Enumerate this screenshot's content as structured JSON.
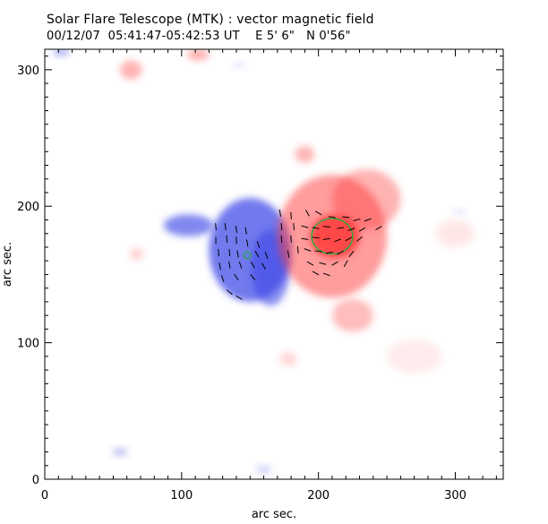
{
  "chart_data": {
    "type": "heatmap",
    "title": "Solar Flare Telescope (MTK) : vector magnetic field",
    "subtitle": {
      "date": "00/12/07",
      "time_range": "05:41:47-05:42:53 UT",
      "position_e": "E 5' 6\"",
      "position_n": "N 0'56\""
    },
    "xlabel": "arc sec.",
    "ylabel": "arc sec.",
    "xlim": [
      0,
      335
    ],
    "ylim": [
      0,
      315
    ],
    "xticks": [
      0,
      100,
      200,
      300
    ],
    "yticks": [
      0,
      100,
      200,
      300
    ],
    "grid": false,
    "colors": {
      "positive_polarity": "#ff3b3b",
      "negative_polarity": "#3a46e6",
      "contour": "#1fae3a",
      "arrows": "#000000"
    },
    "regions": [
      {
        "polarity": "negative",
        "cx": 150,
        "cy": 168,
        "rx": 30,
        "ry": 38,
        "strength": 0.85
      },
      {
        "polarity": "negative",
        "cx": 105,
        "cy": 186,
        "rx": 18,
        "ry": 8,
        "strength": 0.75
      },
      {
        "polarity": "negative",
        "cx": 165,
        "cy": 155,
        "rx": 14,
        "ry": 28,
        "strength": 0.7
      },
      {
        "polarity": "positive",
        "cx": 210,
        "cy": 178,
        "rx": 40,
        "ry": 45,
        "strength": 0.6
      },
      {
        "polarity": "positive",
        "cx": 212,
        "cy": 178,
        "rx": 18,
        "ry": 16,
        "strength": 1.0
      },
      {
        "polarity": "positive",
        "cx": 235,
        "cy": 205,
        "rx": 25,
        "ry": 22,
        "strength": 0.45
      },
      {
        "polarity": "positive",
        "cx": 225,
        "cy": 120,
        "rx": 15,
        "ry": 12,
        "strength": 0.4
      },
      {
        "polarity": "positive",
        "cx": 63,
        "cy": 300,
        "rx": 8,
        "ry": 7,
        "strength": 0.45
      },
      {
        "polarity": "positive",
        "cx": 112,
        "cy": 311,
        "rx": 8,
        "ry": 4,
        "strength": 0.5
      },
      {
        "polarity": "positive",
        "cx": 190,
        "cy": 238,
        "rx": 7,
        "ry": 6,
        "strength": 0.45
      },
      {
        "polarity": "positive",
        "cx": 178,
        "cy": 88,
        "rx": 6,
        "ry": 5,
        "strength": 0.25
      },
      {
        "polarity": "positive",
        "cx": 67,
        "cy": 165,
        "rx": 5,
        "ry": 4,
        "strength": 0.3
      },
      {
        "polarity": "positive",
        "cx": 300,
        "cy": 180,
        "rx": 14,
        "ry": 10,
        "strength": 0.15
      },
      {
        "polarity": "positive",
        "cx": 270,
        "cy": 90,
        "rx": 20,
        "ry": 12,
        "strength": 0.12
      },
      {
        "polarity": "negative",
        "cx": 12,
        "cy": 313,
        "rx": 6,
        "ry": 3,
        "strength": 0.5
      },
      {
        "polarity": "negative",
        "cx": 55,
        "cy": 20,
        "rx": 5,
        "ry": 3,
        "strength": 0.4
      },
      {
        "polarity": "negative",
        "cx": 160,
        "cy": 7,
        "rx": 5,
        "ry": 3,
        "strength": 0.3
      },
      {
        "polarity": "negative",
        "cx": 142,
        "cy": 303,
        "rx": 4,
        "ry": 2,
        "strength": 0.2
      },
      {
        "polarity": "negative",
        "cx": 303,
        "cy": 196,
        "rx": 4,
        "ry": 2,
        "strength": 0.2
      }
    ],
    "contours": [
      {
        "cx": 210,
        "cy": 178,
        "rx": 15,
        "ry": 13
      },
      {
        "cx": 148,
        "cy": 164,
        "rx": 2.5,
        "ry": 2.5
      }
    ],
    "vectors": [
      {
        "x": 125,
        "y": 185,
        "angle": 95
      },
      {
        "x": 132,
        "y": 185,
        "angle": 95
      },
      {
        "x": 140,
        "y": 183,
        "angle": 100
      },
      {
        "x": 147,
        "y": 182,
        "angle": 100
      },
      {
        "x": 125,
        "y": 175,
        "angle": 90
      },
      {
        "x": 133,
        "y": 176,
        "angle": 95
      },
      {
        "x": 140,
        "y": 175,
        "angle": 95
      },
      {
        "x": 148,
        "y": 173,
        "angle": 100
      },
      {
        "x": 156,
        "y": 172,
        "angle": 110
      },
      {
        "x": 127,
        "y": 166,
        "angle": 95
      },
      {
        "x": 135,
        "y": 166,
        "angle": 95
      },
      {
        "x": 141,
        "y": 165,
        "angle": 100
      },
      {
        "x": 155,
        "y": 165,
        "angle": 120
      },
      {
        "x": 162,
        "y": 164,
        "angle": 110
      },
      {
        "x": 128,
        "y": 156,
        "angle": 100
      },
      {
        "x": 135,
        "y": 157,
        "angle": 100
      },
      {
        "x": 143,
        "y": 157,
        "angle": 110
      },
      {
        "x": 152,
        "y": 157,
        "angle": 120
      },
      {
        "x": 160,
        "y": 156,
        "angle": 120
      },
      {
        "x": 130,
        "y": 147,
        "angle": 110
      },
      {
        "x": 140,
        "y": 148,
        "angle": 125
      },
      {
        "x": 152,
        "y": 148,
        "angle": 130
      },
      {
        "x": 135,
        "y": 137,
        "angle": 140
      },
      {
        "x": 142,
        "y": 133,
        "angle": 150
      },
      {
        "x": 172,
        "y": 195,
        "angle": 100
      },
      {
        "x": 180,
        "y": 193,
        "angle": 95
      },
      {
        "x": 173,
        "y": 185,
        "angle": 95
      },
      {
        "x": 182,
        "y": 185,
        "angle": 95
      },
      {
        "x": 173,
        "y": 176,
        "angle": 95
      },
      {
        "x": 180,
        "y": 176,
        "angle": 95
      },
      {
        "x": 178,
        "y": 165,
        "angle": 100
      },
      {
        "x": 185,
        "y": 168,
        "angle": 95
      },
      {
        "x": 192,
        "y": 195,
        "angle": 120
      },
      {
        "x": 200,
        "y": 195,
        "angle": 150
      },
      {
        "x": 210,
        "y": 192,
        "angle": 170
      },
      {
        "x": 220,
        "y": 192,
        "angle": 175
      },
      {
        "x": 228,
        "y": 190,
        "angle": 15
      },
      {
        "x": 236,
        "y": 190,
        "angle": 20
      },
      {
        "x": 190,
        "y": 185,
        "angle": 165
      },
      {
        "x": 198,
        "y": 184,
        "angle": 170
      },
      {
        "x": 206,
        "y": 185,
        "angle": 175
      },
      {
        "x": 216,
        "y": 184,
        "angle": 10
      },
      {
        "x": 224,
        "y": 183,
        "angle": 20
      },
      {
        "x": 232,
        "y": 183,
        "angle": 30
      },
      {
        "x": 244,
        "y": 184,
        "angle": 30
      },
      {
        "x": 190,
        "y": 176,
        "angle": 170
      },
      {
        "x": 198,
        "y": 177,
        "angle": 175
      },
      {
        "x": 206,
        "y": 176,
        "angle": 10
      },
      {
        "x": 214,
        "y": 175,
        "angle": 20
      },
      {
        "x": 222,
        "y": 176,
        "angle": 30
      },
      {
        "x": 230,
        "y": 176,
        "angle": 40
      },
      {
        "x": 192,
        "y": 168,
        "angle": 160
      },
      {
        "x": 200,
        "y": 167,
        "angle": 170
      },
      {
        "x": 208,
        "y": 166,
        "angle": 10
      },
      {
        "x": 216,
        "y": 166,
        "angle": 30
      },
      {
        "x": 224,
        "y": 165,
        "angle": 50
      },
      {
        "x": 194,
        "y": 158,
        "angle": 150
      },
      {
        "x": 203,
        "y": 158,
        "angle": 165
      },
      {
        "x": 212,
        "y": 158,
        "angle": 30
      },
      {
        "x": 220,
        "y": 158,
        "angle": 60
      },
      {
        "x": 198,
        "y": 151,
        "angle": 150
      },
      {
        "x": 206,
        "y": 150,
        "angle": 160
      }
    ]
  }
}
